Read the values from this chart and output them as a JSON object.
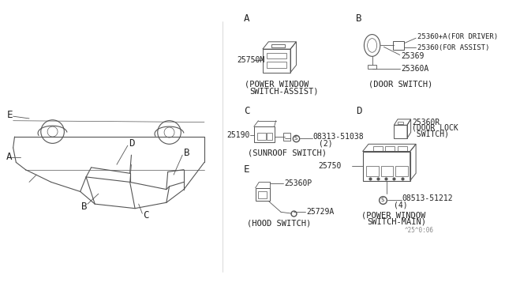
{
  "bg_color": "#ffffff",
  "line_color": "#555555",
  "text_color": "#222222",
  "watermark": "^25^0:06",
  "sections": {
    "A_part": "25750M",
    "B_part1": "25360+A(FOR DRIVER)",
    "B_part2": "25360(FOR ASSIST)",
    "B_part3": "25369",
    "B_part4": "25360A",
    "C_part1": "25190",
    "C_part2": "08313-51038",
    "C_part2b": "(2)",
    "D_part1": "25360R",
    "D_part2": "(DOOR LOCK",
    "D_part2b": " SWITCH)",
    "D_part3": "25750",
    "D_part4": "08513-51212",
    "D_part4b": "(4)",
    "E_part1": "25360P",
    "E_part2": "25729A"
  },
  "fontsize_label": 9,
  "fontsize_part": 7,
  "fontsize_caption": 7.5
}
